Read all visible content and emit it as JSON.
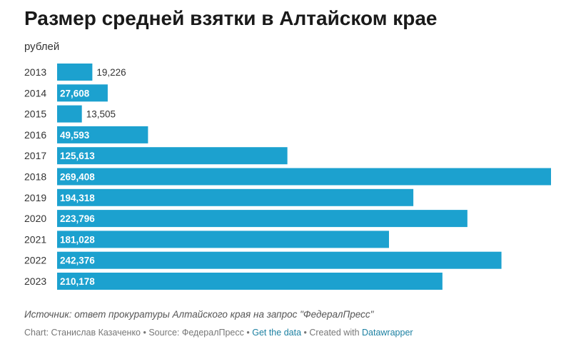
{
  "chart_data": {
    "type": "bar",
    "orientation": "horizontal",
    "title": "Размер средней взятки в Алтайском крае",
    "subtitle": "рублей",
    "categories": [
      "2013",
      "2014",
      "2015",
      "2016",
      "2017",
      "2018",
      "2019",
      "2020",
      "2021",
      "2022",
      "2023"
    ],
    "values": [
      19226,
      27608,
      13505,
      49593,
      125613,
      269408,
      194318,
      223796,
      181028,
      242376,
      210178
    ],
    "value_labels": [
      "19,226",
      "27,608",
      "13,505",
      "49,593",
      "125,613",
      "269,408",
      "194,318",
      "223,796",
      "181,028",
      "242,376",
      "210,178"
    ],
    "xlim": [
      0,
      269408
    ],
    "bar_color": "#1ca1cf",
    "grid": false,
    "legend": "none"
  },
  "footer": {
    "source": "Источник: ответ прокуратуры Алтайского края на запрос \"ФедералПресс\"",
    "credits_prefix": "Chart: Станислав Казаченко • Source: ФедералПресс • ",
    "get_data_label": "Get the data",
    "credits_middle": " • Created with ",
    "datawrapper_label": "Datawrapper"
  }
}
